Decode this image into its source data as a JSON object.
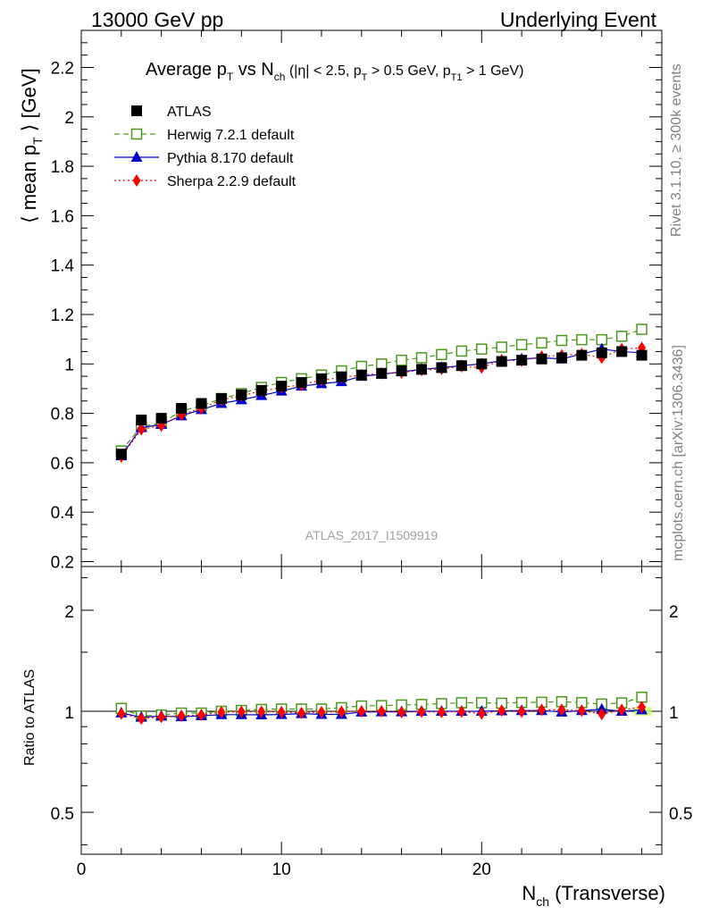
{
  "header": {
    "left": "13000 GeV pp",
    "right": "Underlying Event"
  },
  "side_text": {
    "rivet": "Rivet 3.1.10, ≥ 300k events",
    "mcplots": "mcplots.cern.ch [arXiv:1306.3436]"
  },
  "watermark": "ATLAS_2017_I1509919",
  "chart_data": [
    {
      "type": "scatter",
      "title": "Average p_T vs N_ch (|η| < 2.5, p_T > 0.5 GeV, p_T1 > 1 GeV)",
      "ylabel": "⟨ mean p_T ⟩ [GeV]",
      "xlim": [
        0,
        29
      ],
      "ylim": [
        0.18,
        2.35
      ],
      "yticks": [
        0.2,
        0.4,
        0.6,
        0.8,
        1,
        1.2,
        1.4,
        1.6,
        1.8,
        2,
        2.2
      ],
      "x": [
        2,
        3,
        4,
        5,
        6,
        7,
        8,
        9,
        10,
        11,
        12,
        13,
        14,
        15,
        16,
        17,
        18,
        19,
        20,
        21,
        22,
        23,
        24,
        25,
        26,
        27,
        28
      ],
      "legend_position": "top-left",
      "series": [
        {
          "name": "ATLAS",
          "style": "data",
          "marker": "square-filled",
          "color": "#000000",
          "values": [
            0.635,
            0.773,
            0.78,
            0.82,
            0.84,
            0.86,
            0.875,
            0.893,
            0.91,
            0.925,
            0.94,
            0.948,
            0.955,
            0.962,
            0.972,
            0.978,
            0.985,
            0.993,
            1.0,
            1.01,
            1.015,
            1.02,
            1.025,
            1.035,
            1.045,
            1.05,
            1.035
          ]
        },
        {
          "name": "Herwig 7.2.1 default",
          "style": "dashed",
          "marker": "square-open",
          "color": "#4a9a1a",
          "values": [
            0.648,
            0.748,
            0.76,
            0.81,
            0.83,
            0.86,
            0.88,
            0.905,
            0.925,
            0.94,
            0.955,
            0.972,
            0.99,
            1.0,
            1.015,
            1.025,
            1.038,
            1.052,
            1.06,
            1.068,
            1.078,
            1.085,
            1.095,
            1.098,
            1.098,
            1.112,
            1.14
          ]
        },
        {
          "name": "Pythia 8.170 default",
          "style": "solid",
          "marker": "triangle-filled",
          "color": "#0000cc",
          "values": [
            0.628,
            0.742,
            0.755,
            0.79,
            0.815,
            0.84,
            0.855,
            0.872,
            0.89,
            0.91,
            0.92,
            0.928,
            0.95,
            0.958,
            0.968,
            0.978,
            0.985,
            0.993,
            1.0,
            1.013,
            1.02,
            1.025,
            1.02,
            1.04,
            1.06,
            1.05,
            1.045
          ]
        },
        {
          "name": "Sherpa 2.2.9 default",
          "style": "dotted",
          "marker": "diamond-filled",
          "color": "#ff0000",
          "values": [
            0.625,
            0.735,
            0.75,
            0.795,
            0.82,
            0.855,
            0.872,
            0.89,
            0.905,
            0.915,
            0.935,
            0.945,
            0.955,
            0.962,
            0.965,
            0.975,
            0.98,
            0.99,
            0.985,
            1.015,
            1.013,
            1.03,
            1.035,
            1.04,
            1.025,
            1.06,
            1.065
          ]
        }
      ]
    },
    {
      "type": "scatter",
      "ylabel": "Ratio to ATLAS",
      "xlabel": "N_ch (Transverse)",
      "xlim": [
        0,
        29
      ],
      "ylim": [
        0.375,
        2.7
      ],
      "yscale": "log",
      "xticks": [
        0,
        10,
        20
      ],
      "yticks": [
        0.5,
        1,
        2
      ],
      "x": [
        2,
        3,
        4,
        5,
        6,
        7,
        8,
        9,
        10,
        11,
        12,
        13,
        14,
        15,
        16,
        17,
        18,
        19,
        20,
        21,
        22,
        23,
        24,
        25,
        26,
        27,
        28
      ],
      "series": [
        {
          "name": "Herwig 7.2.1 default",
          "values": [
            1.02,
            0.968,
            0.975,
            0.988,
            0.988,
            1.0,
            1.006,
            1.013,
            1.016,
            1.016,
            1.016,
            1.025,
            1.037,
            1.04,
            1.044,
            1.048,
            1.054,
            1.06,
            1.06,
            1.057,
            1.062,
            1.064,
            1.068,
            1.061,
            1.051,
            1.059,
            1.101
          ]
        },
        {
          "name": "Pythia 8.170 default",
          "values": [
            0.989,
            0.96,
            0.968,
            0.963,
            0.97,
            0.977,
            0.977,
            0.976,
            0.978,
            0.984,
            0.979,
            0.979,
            0.995,
            0.996,
            0.996,
            1.0,
            1.0,
            1.0,
            1.0,
            1.003,
            1.005,
            1.005,
            0.995,
            1.005,
            1.014,
            1.0,
            1.01
          ]
        },
        {
          "name": "Sherpa 2.2.9 default",
          "values": [
            0.984,
            0.951,
            0.962,
            0.97,
            0.976,
            0.994,
            0.997,
            0.997,
            0.995,
            0.989,
            0.995,
            0.997,
            1.0,
            1.0,
            0.993,
            0.997,
            0.995,
            0.997,
            0.985,
            1.005,
            0.998,
            1.01,
            1.01,
            1.005,
            0.981,
            1.01,
            1.029
          ]
        }
      ]
    }
  ]
}
